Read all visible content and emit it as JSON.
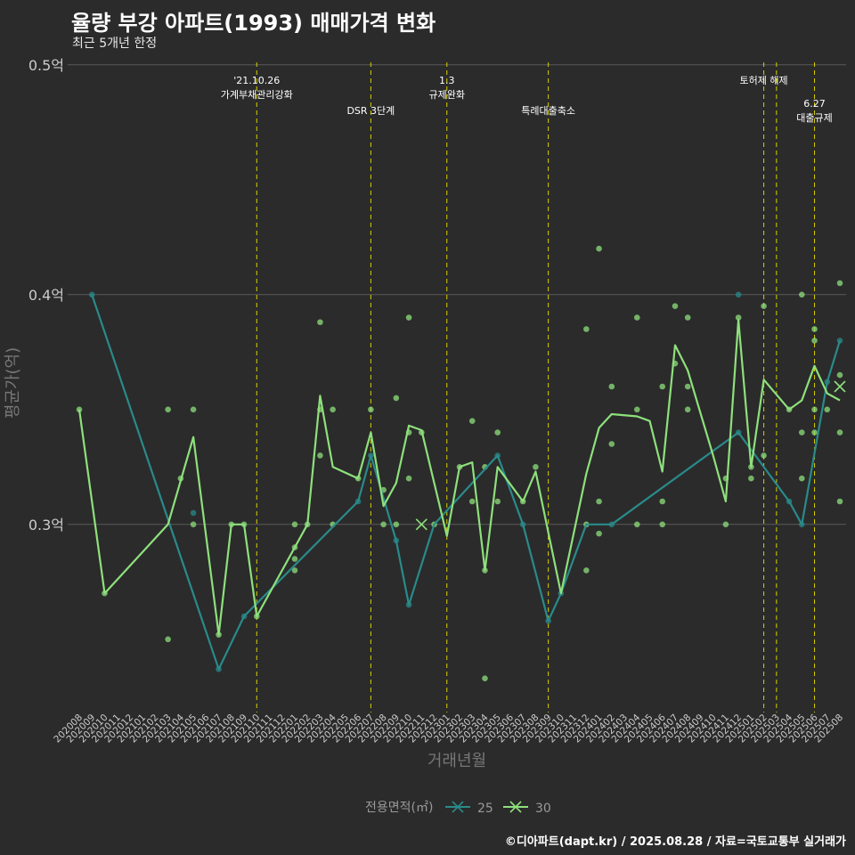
{
  "title": "율량 부강 아파트(1993) 매매가격 변화",
  "subtitle": "최근 5개년 한정",
  "caption": "©디아파트(dapt.kr) / 2025.08.28 / 자료=국토교통부 실거래가",
  "chart_data": {
    "type": "line",
    "xlabel": "거래년월",
    "ylabel": "평균가(억)",
    "ylim": [
      0.22,
      0.52
    ],
    "y_ticks": [
      {
        "value": 0.3,
        "label": "0.3억"
      },
      {
        "value": 0.4,
        "label": "0.4억"
      },
      {
        "value": 0.5,
        "label": "0.5억"
      }
    ],
    "grid": true,
    "x": [
      "202008",
      "202009",
      "202010",
      "202011",
      "202012",
      "202101",
      "202102",
      "202103",
      "202104",
      "202105",
      "202106",
      "202107",
      "202108",
      "202109",
      "202110",
      "202111",
      "202112",
      "202201",
      "202202",
      "202203",
      "202204",
      "202205",
      "202206",
      "202207",
      "202208",
      "202209",
      "202210",
      "202211",
      "202212",
      "202301",
      "202302",
      "202303",
      "202304",
      "202305",
      "202306",
      "202307",
      "202308",
      "202309",
      "202310",
      "202311",
      "202312",
      "202401",
      "202402",
      "202403",
      "202404",
      "202405",
      "202406",
      "202407",
      "202408",
      "202409",
      "202410",
      "202411",
      "202412",
      "202501",
      "202502",
      "202503",
      "202504",
      "202505",
      "202506",
      "202507",
      "202508"
    ],
    "legend": {
      "title": "전용면적(㎡)",
      "entries": [
        "25",
        "30"
      ]
    },
    "series": [
      {
        "name": "25",
        "color": "#2a8a8a",
        "points": [
          [
            "202009",
            0.4
          ],
          [
            "202107",
            0.237
          ],
          [
            "202109",
            0.26
          ],
          [
            "202206",
            0.31
          ],
          [
            "202207",
            0.33
          ],
          [
            "202209",
            0.293
          ],
          [
            "202210",
            0.265
          ],
          [
            "202212",
            0.3
          ],
          [
            "202305",
            0.33
          ],
          [
            "202307",
            0.3
          ],
          [
            "202309",
            0.258
          ],
          [
            "202310",
            0.27
          ],
          [
            "202312",
            0.3
          ],
          [
            "202402",
            0.3
          ],
          [
            "202412",
            0.34
          ],
          [
            "202504",
            0.31
          ],
          [
            "202505",
            0.3
          ],
          [
            "202507",
            0.362
          ],
          [
            "202508",
            0.38
          ]
        ]
      },
      {
        "name": "30",
        "color": "#8ee07c",
        "points": [
          [
            "202008",
            0.35
          ],
          [
            "202010",
            0.27
          ],
          [
            "202103",
            0.3
          ],
          [
            "202105",
            0.338
          ],
          [
            "202107",
            0.252
          ],
          [
            "202108",
            0.3
          ],
          [
            "202109",
            0.3
          ],
          [
            "202110",
            0.26
          ],
          [
            "202202",
            0.3
          ],
          [
            "202203",
            0.356
          ],
          [
            "202204",
            0.325
          ],
          [
            "202206",
            0.32
          ],
          [
            "202207",
            0.34
          ],
          [
            "202208",
            0.308
          ],
          [
            "202209",
            0.318
          ],
          [
            "202210",
            0.343
          ],
          [
            "202211",
            0.341
          ],
          [
            "202301",
            0.295
          ],
          [
            "202302",
            0.325
          ],
          [
            "202303",
            0.327
          ],
          [
            "202304",
            0.28
          ],
          [
            "202305",
            0.325
          ],
          [
            "202307",
            0.31
          ],
          [
            "202308",
            0.323
          ],
          [
            "202310",
            0.27
          ],
          [
            "202312",
            0.322
          ],
          [
            "202401",
            0.342
          ],
          [
            "202402",
            0.348
          ],
          [
            "202404",
            0.347
          ],
          [
            "202405",
            0.345
          ],
          [
            "202406",
            0.323
          ],
          [
            "202407",
            0.378
          ],
          [
            "202408",
            0.367
          ],
          [
            "202410",
            0.33
          ],
          [
            "202411",
            0.31
          ],
          [
            "202412",
            0.389
          ],
          [
            "202501",
            0.325
          ],
          [
            "202502",
            0.363
          ],
          [
            "202504",
            0.35
          ],
          [
            "202505",
            0.354
          ],
          [
            "202506",
            0.369
          ],
          [
            "202507",
            0.357
          ],
          [
            "202508",
            0.354
          ]
        ]
      }
    ],
    "scatter": [
      {
        "x": "202008",
        "y": 0.35,
        "s": "30"
      },
      {
        "x": "202009",
        "y": 0.4,
        "s": "25"
      },
      {
        "x": "202010",
        "y": 0.27,
        "s": "30"
      },
      {
        "x": "202103",
        "y": 0.35,
        "s": "30"
      },
      {
        "x": "202103",
        "y": 0.25,
        "s": "30"
      },
      {
        "x": "202104",
        "y": 0.32,
        "s": "30"
      },
      {
        "x": "202105",
        "y": 0.35,
        "s": "30"
      },
      {
        "x": "202105",
        "y": 0.305,
        "s": "25"
      },
      {
        "x": "202105",
        "y": 0.3,
        "s": "30"
      },
      {
        "x": "202107",
        "y": 0.252,
        "s": "30"
      },
      {
        "x": "202107",
        "y": 0.237,
        "s": "25"
      },
      {
        "x": "202108",
        "y": 0.3,
        "s": "30"
      },
      {
        "x": "202109",
        "y": 0.3,
        "s": "30"
      },
      {
        "x": "202109",
        "y": 0.26,
        "s": "25"
      },
      {
        "x": "202110",
        "y": 0.26,
        "s": "30"
      },
      {
        "x": "202202",
        "y": 0.3,
        "s": "30"
      },
      {
        "x": "202201",
        "y": 0.3,
        "s": "30"
      },
      {
        "x": "202201",
        "y": 0.29,
        "s": "30"
      },
      {
        "x": "202201",
        "y": 0.285,
        "s": "30"
      },
      {
        "x": "202201",
        "y": 0.28,
        "s": "30"
      },
      {
        "x": "202203",
        "y": 0.388,
        "s": "30"
      },
      {
        "x": "202203",
        "y": 0.35,
        "s": "30"
      },
      {
        "x": "202203",
        "y": 0.33,
        "s": "30"
      },
      {
        "x": "202204",
        "y": 0.35,
        "s": "30"
      },
      {
        "x": "202204",
        "y": 0.3,
        "s": "30"
      },
      {
        "x": "202206",
        "y": 0.32,
        "s": "30"
      },
      {
        "x": "202206",
        "y": 0.31,
        "s": "25"
      },
      {
        "x": "202207",
        "y": 0.35,
        "s": "30"
      },
      {
        "x": "202207",
        "y": 0.33,
        "s": "25"
      },
      {
        "x": "202208",
        "y": 0.315,
        "s": "30"
      },
      {
        "x": "202208",
        "y": 0.3,
        "s": "30"
      },
      {
        "x": "202209",
        "y": 0.355,
        "s": "30"
      },
      {
        "x": "202209",
        "y": 0.3,
        "s": "30"
      },
      {
        "x": "202209",
        "y": 0.293,
        "s": "25"
      },
      {
        "x": "202210",
        "y": 0.39,
        "s": "30"
      },
      {
        "x": "202210",
        "y": 0.34,
        "s": "30"
      },
      {
        "x": "202210",
        "y": 0.32,
        "s": "30"
      },
      {
        "x": "202210",
        "y": 0.265,
        "s": "25"
      },
      {
        "x": "202211",
        "y": 0.34,
        "s": "30"
      },
      {
        "x": "202212",
        "y": 0.3,
        "s": "30"
      },
      {
        "x": "202302",
        "y": 0.325,
        "s": "30"
      },
      {
        "x": "202303",
        "y": 0.345,
        "s": "30"
      },
      {
        "x": "202303",
        "y": 0.31,
        "s": "30"
      },
      {
        "x": "202304",
        "y": 0.325,
        "s": "30"
      },
      {
        "x": "202304",
        "y": 0.28,
        "s": "30"
      },
      {
        "x": "202304",
        "y": 0.233,
        "s": "30"
      },
      {
        "x": "202305",
        "y": 0.34,
        "s": "30"
      },
      {
        "x": "202305",
        "y": 0.33,
        "s": "25"
      },
      {
        "x": "202305",
        "y": 0.31,
        "s": "30"
      },
      {
        "x": "202307",
        "y": 0.31,
        "s": "30"
      },
      {
        "x": "202307",
        "y": 0.3,
        "s": "25"
      },
      {
        "x": "202308",
        "y": 0.325,
        "s": "30"
      },
      {
        "x": "202309",
        "y": 0.258,
        "s": "25"
      },
      {
        "x": "202310",
        "y": 0.27,
        "s": "25"
      },
      {
        "x": "202312",
        "y": 0.385,
        "s": "30"
      },
      {
        "x": "202312",
        "y": 0.3,
        "s": "30"
      },
      {
        "x": "202312",
        "y": 0.28,
        "s": "30"
      },
      {
        "x": "202401",
        "y": 0.42,
        "s": "30"
      },
      {
        "x": "202401",
        "y": 0.31,
        "s": "30"
      },
      {
        "x": "202401",
        "y": 0.296,
        "s": "30"
      },
      {
        "x": "202402",
        "y": 0.36,
        "s": "30"
      },
      {
        "x": "202402",
        "y": 0.335,
        "s": "30"
      },
      {
        "x": "202402",
        "y": 0.3,
        "s": "25"
      },
      {
        "x": "202404",
        "y": 0.39,
        "s": "30"
      },
      {
        "x": "202404",
        "y": 0.35,
        "s": "30"
      },
      {
        "x": "202404",
        "y": 0.3,
        "s": "30"
      },
      {
        "x": "202406",
        "y": 0.36,
        "s": "30"
      },
      {
        "x": "202406",
        "y": 0.31,
        "s": "30"
      },
      {
        "x": "202406",
        "y": 0.3,
        "s": "30"
      },
      {
        "x": "202407",
        "y": 0.395,
        "s": "30"
      },
      {
        "x": "202407",
        "y": 0.37,
        "s": "30"
      },
      {
        "x": "202408",
        "y": 0.39,
        "s": "30"
      },
      {
        "x": "202408",
        "y": 0.36,
        "s": "30"
      },
      {
        "x": "202408",
        "y": 0.35,
        "s": "30"
      },
      {
        "x": "202411",
        "y": 0.32,
        "s": "30"
      },
      {
        "x": "202411",
        "y": 0.3,
        "s": "30"
      },
      {
        "x": "202412",
        "y": 0.4,
        "s": "25"
      },
      {
        "x": "202412",
        "y": 0.39,
        "s": "30"
      },
      {
        "x": "202412",
        "y": 0.34,
        "s": "25"
      },
      {
        "x": "202501",
        "y": 0.325,
        "s": "30"
      },
      {
        "x": "202501",
        "y": 0.32,
        "s": "30"
      },
      {
        "x": "202502",
        "y": 0.395,
        "s": "30"
      },
      {
        "x": "202502",
        "y": 0.33,
        "s": "30"
      },
      {
        "x": "202504",
        "y": 0.35,
        "s": "30"
      },
      {
        "x": "202504",
        "y": 0.31,
        "s": "25"
      },
      {
        "x": "202505",
        "y": 0.4,
        "s": "30"
      },
      {
        "x": "202505",
        "y": 0.34,
        "s": "30"
      },
      {
        "x": "202505",
        "y": 0.32,
        "s": "30"
      },
      {
        "x": "202505",
        "y": 0.3,
        "s": "25"
      },
      {
        "x": "202506",
        "y": 0.385,
        "s": "30"
      },
      {
        "x": "202506",
        "y": 0.38,
        "s": "30"
      },
      {
        "x": "202506",
        "y": 0.35,
        "s": "30"
      },
      {
        "x": "202506",
        "y": 0.34,
        "s": "30"
      },
      {
        "x": "202507",
        "y": 0.362,
        "s": "25"
      },
      {
        "x": "202507",
        "y": 0.35,
        "s": "30"
      },
      {
        "x": "202508",
        "y": 0.405,
        "s": "30"
      },
      {
        "x": "202508",
        "y": 0.38,
        "s": "25"
      },
      {
        "x": "202508",
        "y": 0.365,
        "s": "30"
      },
      {
        "x": "202508",
        "y": 0.34,
        "s": "30"
      },
      {
        "x": "202508",
        "y": 0.31,
        "s": "30"
      }
    ],
    "single_marks": [
      {
        "x": "202211",
        "y": 0.3,
        "s": "30"
      },
      {
        "x": "202508",
        "y": 0.36,
        "s": "30"
      }
    ],
    "annotations": [
      {
        "x": "202110",
        "lines": [
          "'21.10.26",
          "가계부채관리강화"
        ],
        "level": 0
      },
      {
        "x": "202207",
        "lines": [
          "DSR 3단계"
        ],
        "level": 1
      },
      {
        "x": "202301",
        "lines": [
          "1.3",
          "규제완화"
        ],
        "level": 0
      },
      {
        "x": "202309",
        "lines": [
          "특례대출축소"
        ],
        "level": 1
      },
      {
        "x": "202502",
        "lines": [
          "토허제 해제"
        ],
        "level": 0
      },
      {
        "x": "202503",
        "lines": [],
        "level": 0
      },
      {
        "x": "202506",
        "lines": [
          "6.27",
          "대출규제"
        ],
        "level": 2
      }
    ],
    "colors": {
      "s25": "#2a8a8a",
      "s30": "#8ee07c",
      "vline": "#d8d000",
      "grid": "#5a5a5a"
    }
  }
}
